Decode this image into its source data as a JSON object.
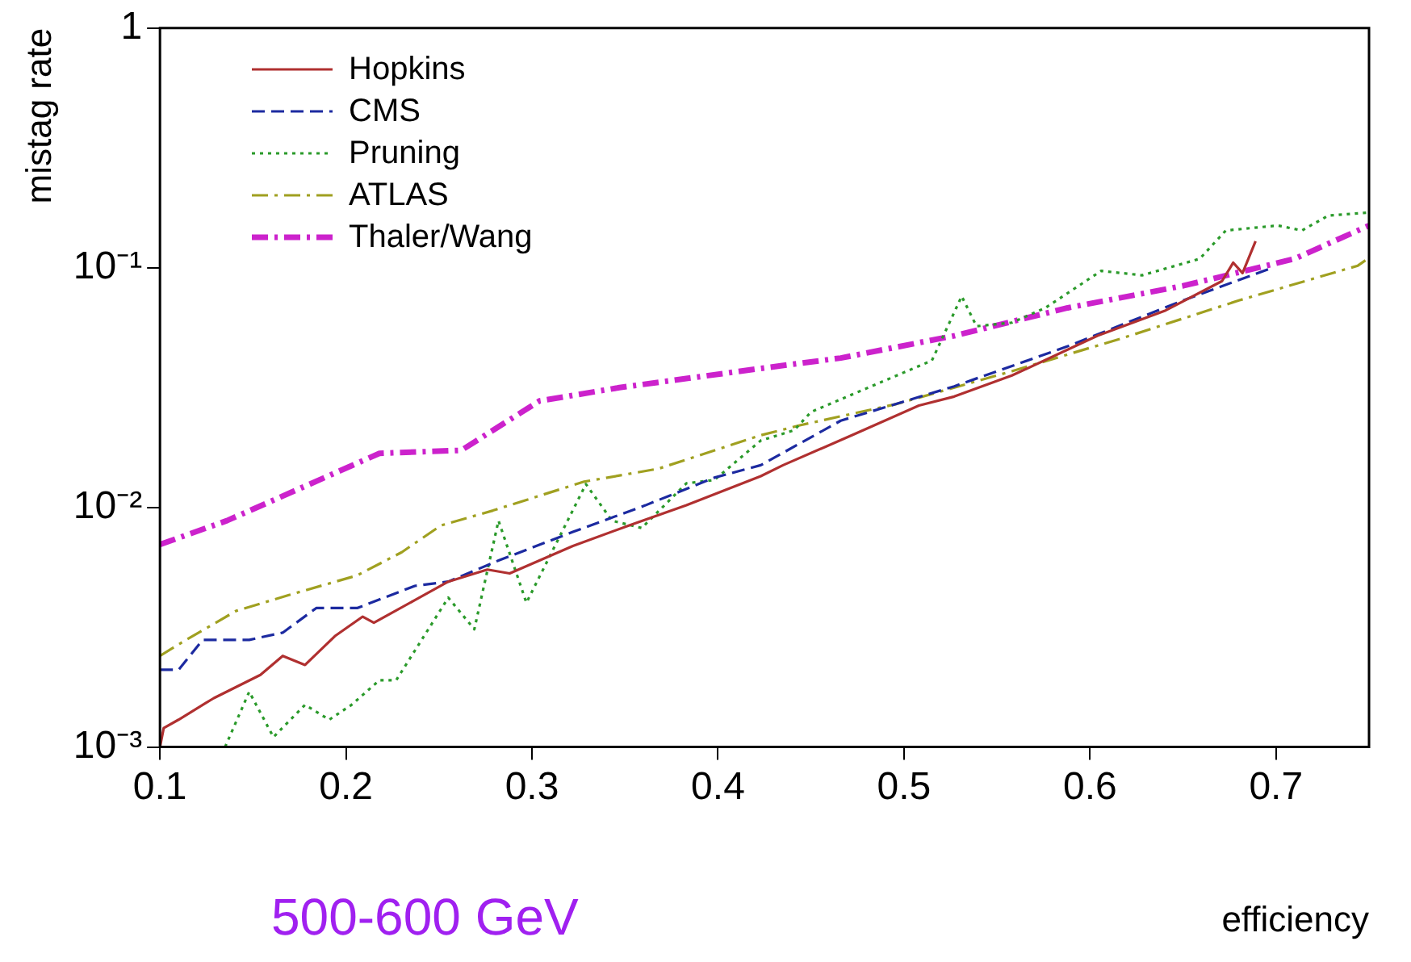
{
  "chart_data": {
    "type": "line",
    "xlabel": "efficiency",
    "ylabel": "mistag rate",
    "annotations": [
      "500-600 GeV"
    ],
    "xlim": [
      0.1,
      0.75
    ],
    "xticks": [
      0.1,
      0.2,
      0.3,
      0.4,
      0.5,
      0.6,
      0.7
    ],
    "ylim": [
      0.001,
      1
    ],
    "yticks": [
      {
        "value": 0.001,
        "label": "10⁻³"
      },
      {
        "value": 0.01,
        "label": "10⁻²"
      },
      {
        "value": 0.1,
        "label": "10⁻¹"
      },
      1
    ],
    "log": "y",
    "grid": false,
    "legend": "top left",
    "marker": "none",
    "series": [
      {
        "name": "Hopkins",
        "color": "#b03030",
        "line_style": "solid",
        "x": [
          0.1,
          0.102,
          0.11,
          0.129,
          0.154,
          0.166,
          0.178,
          0.194,
          0.209,
          0.215,
          0.237,
          0.255,
          0.276,
          0.288,
          0.306,
          0.322,
          0.352,
          0.383,
          0.423,
          0.435,
          0.472,
          0.508,
          0.527,
          0.558,
          0.604,
          0.64,
          0.671,
          0.677,
          0.682,
          0.689
        ],
        "values": [
          0.001,
          0.0012,
          0.0013,
          0.0016,
          0.002,
          0.0024,
          0.0022,
          0.0029,
          0.0035,
          0.0033,
          0.0041,
          0.0049,
          0.0055,
          0.0053,
          0.0061,
          0.0069,
          0.0084,
          0.0102,
          0.0135,
          0.015,
          0.02,
          0.0266,
          0.029,
          0.0355,
          0.052,
          0.066,
          0.088,
          0.105,
          0.095,
          0.129
        ]
      },
      {
        "name": "CMS",
        "color": "#1c2aa0",
        "line_style": "dashed",
        "x": [
          0.1,
          0.11,
          0.123,
          0.148,
          0.166,
          0.184,
          0.206,
          0.237,
          0.255,
          0.282,
          0.322,
          0.361,
          0.398,
          0.423,
          0.466,
          0.527,
          0.588,
          0.65,
          0.698
        ],
        "values": [
          0.0021,
          0.0021,
          0.0028,
          0.0028,
          0.003,
          0.0038,
          0.0038,
          0.0047,
          0.0049,
          0.006,
          0.0079,
          0.0102,
          0.0133,
          0.015,
          0.023,
          0.032,
          0.047,
          0.073,
          0.1
        ]
      },
      {
        "name": "Pruning",
        "color": "#2a9a2a",
        "line_style": "dotted",
        "x": [
          0.135,
          0.148,
          0.161,
          0.178,
          0.191,
          0.203,
          0.218,
          0.227,
          0.255,
          0.269,
          0.282,
          0.297,
          0.329,
          0.343,
          0.359,
          0.383,
          0.398,
          0.423,
          0.441,
          0.45,
          0.515,
          0.531,
          0.539,
          0.558,
          0.576,
          0.606,
          0.628,
          0.659,
          0.673,
          0.701,
          0.714,
          0.728,
          0.75
        ],
        "values": [
          0.001,
          0.0017,
          0.0011,
          0.0015,
          0.0013,
          0.0015,
          0.0019,
          0.0019,
          0.0042,
          0.0031,
          0.0088,
          0.004,
          0.0125,
          0.0088,
          0.0082,
          0.0126,
          0.013,
          0.019,
          0.021,
          0.025,
          0.041,
          0.076,
          0.057,
          0.059,
          0.068,
          0.097,
          0.093,
          0.109,
          0.143,
          0.15,
          0.143,
          0.165,
          0.17
        ]
      },
      {
        "name": "ATLAS",
        "color": "#a0a020",
        "line_style": "dashdot",
        "x": [
          0.1,
          0.114,
          0.141,
          0.169,
          0.206,
          0.23,
          0.251,
          0.279,
          0.328,
          0.368,
          0.423,
          0.444,
          0.496,
          0.558,
          0.618,
          0.68,
          0.744,
          0.75
        ],
        "values": [
          0.0024,
          0.0028,
          0.0037,
          0.0043,
          0.0052,
          0.0065,
          0.0084,
          0.0097,
          0.0128,
          0.0145,
          0.02,
          0.022,
          0.027,
          0.037,
          0.051,
          0.073,
          0.102,
          0.11
        ]
      },
      {
        "name": "Thaler/Wang",
        "color": "#cc22cc",
        "line_style": "dashdot",
        "x": [
          0.1,
          0.136,
          0.218,
          0.262,
          0.304,
          0.347,
          0.423,
          0.466,
          0.527,
          0.588,
          0.65,
          0.71,
          0.75
        ],
        "values": [
          0.007,
          0.0088,
          0.0168,
          0.0173,
          0.0278,
          0.0316,
          0.038,
          0.042,
          0.052,
          0.068,
          0.084,
          0.109,
          0.15
        ]
      }
    ]
  }
}
